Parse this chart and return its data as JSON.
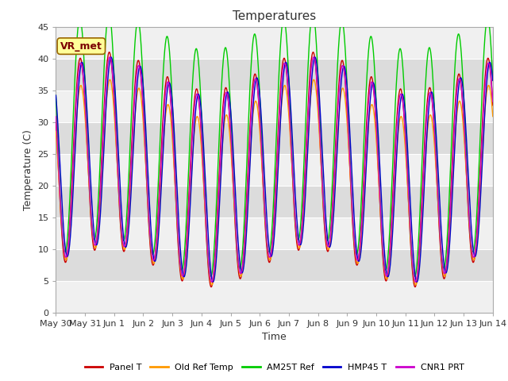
{
  "title": "Temperatures",
  "xlabel": "Time",
  "ylabel": "Temperature (C)",
  "annotation": "VR_met",
  "ylim": [
    0,
    45
  ],
  "duration_days": 15,
  "x_tick_labels": [
    "May 30",
    "May 31",
    "Jun 1",
    "Jun 2",
    "Jun 3",
    "Jun 4",
    "Jun 5",
    "Jun 6",
    "Jun 7",
    "Jun 8",
    "Jun 9",
    "Jun 10",
    "Jun 11",
    "Jun 12",
    "Jun 13",
    "Jun 14"
  ],
  "series_colors": [
    "#cc0000",
    "#ff9900",
    "#00cc00",
    "#0000cc",
    "#cc00cc"
  ],
  "series_names": [
    "Panel T",
    "Old Ref Temp",
    "AM25T Ref",
    "HMP45 T",
    "CNR1 PRT"
  ],
  "fig_bg_color": "#ffffff",
  "plot_bg_light": "#f0f0f0",
  "plot_bg_dark": "#dcdcdc",
  "grid_color": "#ffffff",
  "n_points": 2000,
  "daily_min": 7,
  "daily_max_base": 38,
  "offsets": [
    0,
    -2,
    4,
    0,
    0
  ],
  "amp_factors": [
    1.0,
    0.85,
    1.15,
    0.95,
    0.95
  ],
  "phase_shifts_hours": [
    0,
    0.5,
    -0.3,
    1.5,
    0.3
  ],
  "day_var_amp": 3,
  "day_var_period": 7,
  "title_fontsize": 11,
  "label_fontsize": 9,
  "tick_fontsize": 8,
  "legend_fontsize": 8,
  "line_width": 1.0,
  "yticks": [
    0,
    5,
    10,
    15,
    20,
    25,
    30,
    35,
    40,
    45
  ]
}
